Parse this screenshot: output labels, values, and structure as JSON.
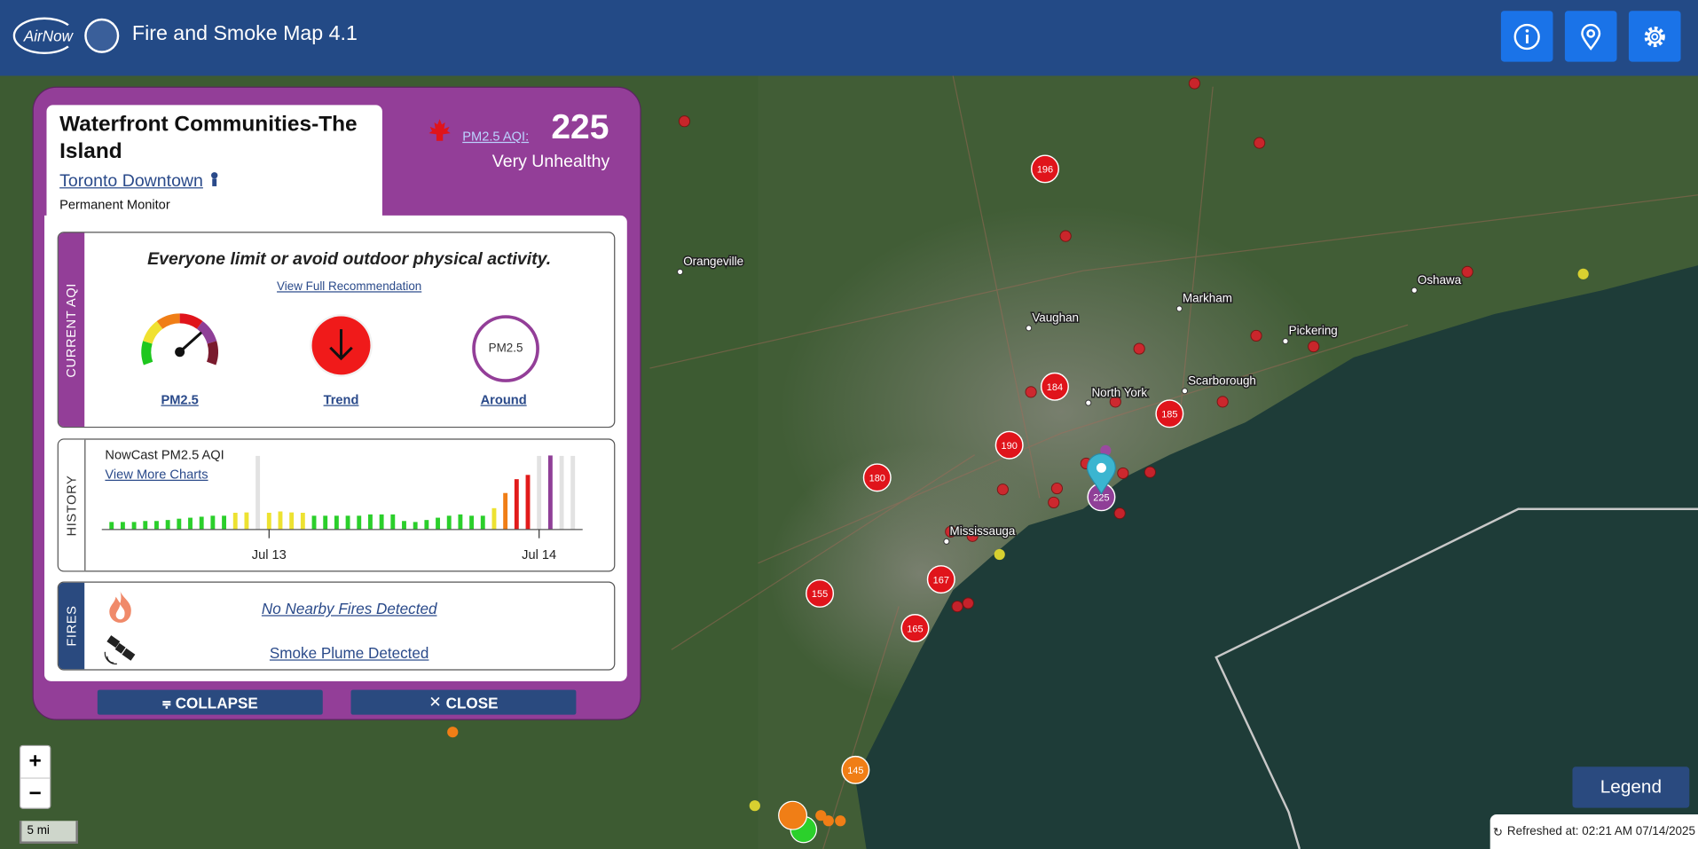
{
  "header": {
    "logo": "AirNow",
    "title": "Fire and Smoke Map 4.1"
  },
  "panel": {
    "site": "Waterfront Communities-The Island",
    "area": "Toronto Downtown",
    "monitor_type": "Permanent Monitor",
    "aqi_label": "PM2.5 AQI:",
    "aqi": 225,
    "category": "Very Unhealthy",
    "current": {
      "tab": "CURRENT AQI",
      "message": "Everyone limit or avoid outdoor physical activity.",
      "link": "View Full Recommendation",
      "gauge_label": "PM2.5",
      "trend_label": "Trend",
      "around_ring": "PM2.5",
      "around_label": "Around"
    },
    "history": {
      "tab": "HISTORY",
      "type": "bar",
      "title": "NowCast PM2.5 AQI",
      "link": "View More Charts",
      "values": [
        23,
        23,
        23,
        26,
        26,
        29,
        33,
        36,
        39,
        42,
        42,
        51,
        52,
        null,
        51,
        55,
        52,
        51,
        42,
        42,
        42,
        42,
        42,
        46,
        46,
        46,
        26,
        23,
        29,
        36,
        42,
        46,
        42,
        42,
        65,
        111,
        153,
        166,
        null,
        225,
        null,
        null
      ],
      "colors": [
        "#2bcf2b",
        "#2bcf2b",
        "#2bcf2b",
        "#2bcf2b",
        "#2bcf2b",
        "#2bcf2b",
        "#2bcf2b",
        "#2bcf2b",
        "#2bcf2b",
        "#2bcf2b",
        "#2bcf2b",
        "#ede231",
        "#ede231",
        "#e2e2e2",
        "#ede231",
        "#ede231",
        "#ede231",
        "#ede231",
        "#2bcf2b",
        "#2bcf2b",
        "#2bcf2b",
        "#2bcf2b",
        "#2bcf2b",
        "#2bcf2b",
        "#2bcf2b",
        "#2bcf2b",
        "#2bcf2b",
        "#2bcf2b",
        "#2bcf2b",
        "#2bcf2b",
        "#2bcf2b",
        "#2bcf2b",
        "#2bcf2b",
        "#2bcf2b",
        "#ede231",
        "#f07e16",
        "#e21b1b",
        "#e21b1b",
        "#e2e2e2",
        "#8f3f97",
        "#e2e2e2",
        "#e2e2e2"
      ],
      "ylim": [
        0,
        250
      ],
      "xticks": [
        {
          "value": 14,
          "label": "Jul 13"
        },
        {
          "value": 38,
          "label": "Jul 14"
        }
      ]
    },
    "fires": {
      "tab": "FIRES",
      "fires": "No Nearby Fires Detected",
      "smoke": "Smoke Plume Detected"
    },
    "buttons": {
      "collapse": "COLLAPSE",
      "close": "CLOSE"
    }
  },
  "map": {
    "markers": [
      {
        "label": 196,
        "color": "#e0141b"
      },
      {
        "label": 184,
        "color": "#e0141b"
      },
      {
        "label": 185,
        "color": "#e0141b"
      },
      {
        "label": 190,
        "color": "#e0141b"
      },
      {
        "label": 180,
        "color": "#e0141b"
      },
      {
        "label": 167,
        "color": "#e0141b"
      },
      {
        "label": 155,
        "color": "#e0141b"
      },
      {
        "label": 165,
        "color": "#e0141b"
      },
      {
        "label": 145,
        "color": "#f07e16"
      },
      {
        "label": 225,
        "color": "#8f3f97"
      }
    ],
    "places": [
      "Orangeville",
      "Vaughan",
      "Markham",
      "Oshawa",
      "Pickering",
      "North York",
      "Scarborough",
      "Mississauga"
    ],
    "zoom_in": "+",
    "zoom_out": "−",
    "scale": "5 mi",
    "legend": "Legend",
    "refreshed": "Refreshed at: 02:21 AM 07/14/2025"
  }
}
